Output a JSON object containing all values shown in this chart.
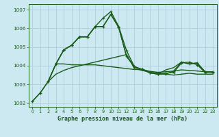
{
  "title": "Graphe pression niveau de la mer (hPa)",
  "background_color": "#cce8f0",
  "grid_color": "#aac8d8",
  "line_color": "#1a5c1a",
  "xlim": [
    -0.5,
    23.5
  ],
  "ylim": [
    1001.8,
    1007.3
  ],
  "yticks": [
    1002,
    1003,
    1004,
    1005,
    1006,
    1007
  ],
  "xticks": [
    0,
    1,
    2,
    3,
    4,
    5,
    6,
    7,
    8,
    9,
    10,
    11,
    12,
    13,
    14,
    15,
    16,
    17,
    18,
    19,
    20,
    21,
    22,
    23
  ],
  "series": [
    {
      "x": [
        0,
        1,
        2,
        3,
        4,
        5,
        6,
        7,
        8,
        9,
        10,
        11,
        12,
        13,
        14,
        15,
        16,
        17,
        18,
        19,
        20,
        21,
        22,
        23
      ],
      "y": [
        1002.1,
        1002.55,
        1003.15,
        1003.55,
        1003.75,
        1003.9,
        1004.0,
        1004.1,
        1004.2,
        1004.3,
        1004.4,
        1004.5,
        1004.6,
        1003.85,
        1003.75,
        1003.65,
        1003.6,
        1003.55,
        1003.5,
        1003.55,
        1003.6,
        1003.55,
        1003.55,
        1003.55
      ],
      "marker": null,
      "lw": 1.0
    },
    {
      "x": [
        0,
        1,
        2,
        3,
        4,
        5,
        6,
        7,
        8,
        9,
        10,
        11,
        12,
        13,
        14,
        15,
        16,
        17,
        18,
        19,
        20,
        21,
        22,
        23
      ],
      "y": [
        1002.1,
        1002.55,
        1003.15,
        1004.1,
        1004.85,
        1005.1,
        1005.55,
        1005.55,
        1006.1,
        1006.55,
        1006.9,
        1006.1,
        1004.8,
        1003.95,
        1003.8,
        1003.65,
        1003.55,
        1003.6,
        1003.65,
        1004.15,
        1004.2,
        1004.05,
        1003.65,
        1003.65
      ],
      "marker": "+",
      "lw": 1.0
    },
    {
      "x": [
        2,
        3,
        4,
        5,
        6,
        7,
        8,
        9,
        10,
        11,
        12,
        13,
        14,
        15,
        16,
        17,
        18,
        19,
        20,
        21,
        22,
        23
      ],
      "y": [
        1003.15,
        1004.1,
        1004.85,
        1005.1,
        1005.55,
        1005.55,
        1006.1,
        1006.1,
        1006.75,
        1006.05,
        1004.5,
        1003.95,
        1003.8,
        1003.62,
        1003.55,
        1003.55,
        1003.72,
        1004.2,
        1004.1,
        1004.15,
        1003.68,
        1003.68
      ],
      "marker": "+",
      "lw": 1.0
    },
    {
      "x": [
        2,
        3,
        4,
        5,
        6,
        7,
        8,
        9,
        10,
        11,
        12,
        13,
        14,
        15,
        16,
        17,
        18,
        19,
        20,
        21,
        22,
        23
      ],
      "y": [
        1003.15,
        1004.1,
        1004.85,
        1005.1,
        1005.55,
        1005.55,
        1006.1,
        1006.1,
        1006.75,
        1006.05,
        1004.5,
        1003.95,
        1003.8,
        1003.62,
        1003.55,
        1003.78,
        1003.9,
        1004.2,
        1004.1,
        1004.15,
        1003.68,
        1003.68
      ],
      "marker": null,
      "lw": 1.0
    },
    {
      "x": [
        3,
        4,
        5,
        6,
        7,
        8,
        9,
        10,
        11,
        12,
        13,
        14,
        15,
        16,
        17,
        18,
        19,
        20,
        21,
        22,
        23
      ],
      "y": [
        1004.1,
        1004.1,
        1004.05,
        1004.05,
        1004.05,
        1004.05,
        1004.0,
        1003.95,
        1003.9,
        1003.85,
        1003.8,
        1003.8,
        1003.7,
        1003.65,
        1003.68,
        1003.72,
        1003.78,
        1003.75,
        1003.72,
        1003.68,
        1003.65
      ],
      "marker": null,
      "lw": 1.0
    }
  ]
}
